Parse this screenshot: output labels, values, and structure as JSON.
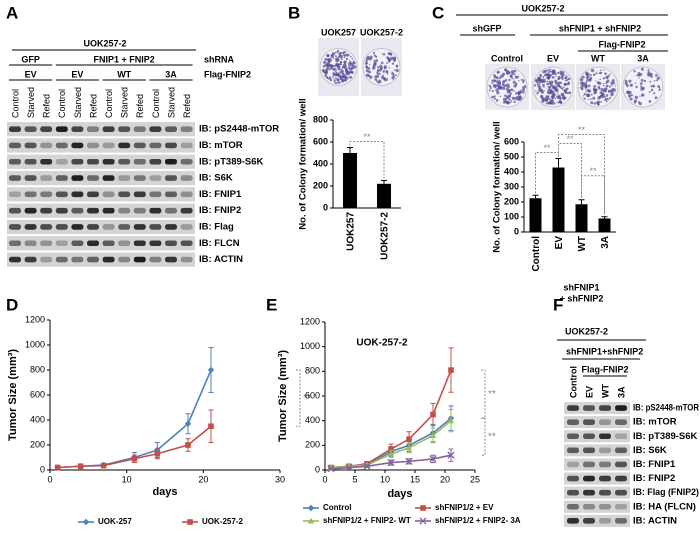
{
  "panels": [
    "A",
    "B",
    "C",
    "D",
    "E",
    "F"
  ],
  "blot_a": {
    "title": "UOK257-2",
    "row_labels": [
      "shRNA",
      "Flag-FNIP2"
    ],
    "groups": [
      "GFP",
      "FNIP1 + FNIP2"
    ],
    "constructs": [
      "EV",
      "EV",
      "WT",
      "3A"
    ],
    "lanes": [
      "Control",
      "Starved",
      "Refed",
      "Control",
      "Starved",
      "Refed",
      "Control",
      "Starved",
      "Refed",
      "Control",
      "Starved",
      "Refed"
    ],
    "probes": [
      "IB: pS2448-mTOR",
      "IB: mTOR",
      "IB: pT389-S6K",
      "IB: S6K",
      "IB: FNIP1",
      "IB: FNIP2",
      "IB: Flag",
      "IB: FLCN",
      "IB: ACTIN"
    ]
  },
  "colony_b": {
    "labels": [
      "UOK257",
      "UOK257-2"
    ]
  },
  "colony_c": {
    "title": "UOK257-2",
    "groups": [
      "shGFP",
      "shFNIP1 + shFNIP2"
    ],
    "subgroup": "Flag-FNIP2",
    "labels": [
      "Control",
      "EV",
      "WT",
      "3A"
    ]
  },
  "blot_f": {
    "title": "UOK257-2",
    "group": "shFNIP1+shFNIP2",
    "subgroup": "Flag-FNIP2",
    "lanes": [
      "Control",
      "EV",
      "WT",
      "3A"
    ],
    "probes": [
      "IB: pS2448-mTOR",
      "IB: mTOR",
      "IB: pT389-S6K",
      "IB: S6K",
      "IB: FNIP1",
      "IB: FNIP2",
      "IB: Flag (FNIP2)",
      "IB: HA (FLCN)",
      "IB: ACTIN"
    ]
  },
  "chart_data": [
    {
      "type": "bar",
      "ylabel": "No. of Colony formation/ well",
      "categories": [
        "UOK257",
        "UOK257-2"
      ],
      "values": [
        500,
        220
      ],
      "errors": [
        50,
        30
      ],
      "color": "#000000",
      "ylim": [
        0,
        800
      ],
      "yticks": [
        0,
        200,
        400,
        600,
        800
      ],
      "comparisons": [
        {
          "pair": [
            0,
            1
          ],
          "label": "**"
        }
      ]
    },
    {
      "type": "bar",
      "ylabel": "No. of Colony formation/ well",
      "categories": [
        "Control",
        "EV",
        "WT",
        "3A"
      ],
      "values": [
        225,
        430,
        185,
        90
      ],
      "errors": [
        20,
        60,
        30,
        12
      ],
      "color": "#000000",
      "ylim": [
        0,
        600
      ],
      "yticks": [
        0,
        100,
        200,
        300,
        400,
        500,
        600
      ],
      "group_labels": [
        "shFNIP1",
        "+ shFNIP2"
      ],
      "comparisons": [
        {
          "pair": [
            0,
            1
          ],
          "label": "**"
        },
        {
          "pair": [
            1,
            2
          ],
          "label": "**"
        },
        {
          "pair": [
            1,
            3
          ],
          "label": "**"
        },
        {
          "pair": [
            2,
            3
          ],
          "label": "**"
        }
      ]
    },
    {
      "type": "line",
      "xlabel": "days",
      "ylabel": "Tumor Size (mm³)",
      "x": [
        1,
        4,
        7,
        11,
        14,
        18,
        21
      ],
      "series": [
        {
          "name": "UOK-257",
          "color": "#4f81bd",
          "marker": "diamond",
          "values": [
            20,
            30,
            40,
            100,
            160,
            370,
            800
          ],
          "errors": [
            5,
            10,
            10,
            40,
            60,
            80,
            180
          ]
        },
        {
          "name": "UOK-257-2",
          "color": "#c0504d",
          "marker": "square",
          "values": [
            20,
            30,
            35,
            90,
            130,
            200,
            350
          ],
          "errors": [
            5,
            10,
            10,
            30,
            40,
            50,
            130
          ]
        }
      ],
      "xlim": [
        0,
        30
      ],
      "xticks": [
        0,
        10,
        20,
        30
      ],
      "ylim": [
        0,
        1200
      ],
      "yticks": [
        0,
        200,
        400,
        600,
        800,
        1000,
        1200
      ],
      "comparisons": [
        {
          "pair": [
            0,
            1
          ],
          "label": "**"
        }
      ]
    },
    {
      "type": "line",
      "title": "UOK-257-2",
      "xlabel": "days",
      "ylabel": "Tumor Size (mm³)",
      "x": [
        1,
        4,
        7,
        11,
        14,
        18,
        21
      ],
      "series": [
        {
          "name": "Control",
          "color": "#4f81bd",
          "marker": "diamond",
          "values": [
            20,
            30,
            40,
            150,
            200,
            300,
            420
          ],
          "errors": [
            5,
            10,
            10,
            40,
            50,
            70,
            100
          ]
        },
        {
          "name": "shFNIP1/2 + EV",
          "color": "#c0504d",
          "marker": "square",
          "values": [
            20,
            30,
            50,
            170,
            250,
            450,
            810
          ],
          "errors": [
            5,
            10,
            15,
            40,
            60,
            90,
            180
          ]
        },
        {
          "name": "shFNIP1/2 + FNIP2- WT",
          "color": "#9bbb59",
          "marker": "triangle",
          "values": [
            20,
            30,
            40,
            130,
            180,
            280,
            400
          ],
          "errors": [
            5,
            10,
            10,
            30,
            40,
            60,
            90
          ]
        },
        {
          "name": "shFNIP1/2 + FNIP2- 3A",
          "color": "#8064a2",
          "marker": "x",
          "values": [
            10,
            20,
            30,
            60,
            70,
            90,
            120
          ],
          "errors": [
            5,
            5,
            10,
            20,
            20,
            30,
            50
          ]
        }
      ],
      "xlim": [
        0,
        25
      ],
      "xticks": [
        0,
        5,
        10,
        15,
        20,
        25
      ],
      "ylim": [
        0,
        1200
      ],
      "yticks": [
        0,
        200,
        400,
        600,
        800,
        1000,
        1200
      ],
      "comparisons": [
        {
          "pair": [
            1,
            0
          ],
          "label": "**"
        },
        {
          "pair": [
            0,
            3
          ],
          "label": "**"
        }
      ]
    }
  ]
}
